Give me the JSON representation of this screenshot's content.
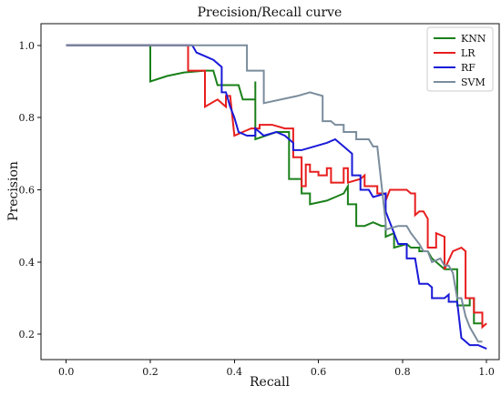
{
  "chart_data": {
    "type": "line",
    "title": "Precision/Recall curve",
    "xlabel": "Recall",
    "ylabel": "Precision",
    "xlim": [
      -0.06,
      1.03
    ],
    "ylim": [
      0.13,
      1.06
    ],
    "xticks": [
      0.0,
      0.2,
      0.4,
      0.6,
      0.8,
      1.0
    ],
    "yticks": [
      0.2,
      0.4,
      0.6,
      0.8,
      1.0
    ],
    "xtick_labels": [
      "0.0",
      "0.2",
      "0.4",
      "0.6",
      "0.8",
      "1.0"
    ],
    "ytick_labels": [
      "0.2",
      "0.4",
      "0.6",
      "0.8",
      "1.0"
    ],
    "grid": false,
    "legend_position": "top-right",
    "series": [
      {
        "name": "KNN",
        "color": "#1a801a",
        "points": [
          [
            0.0,
            1.0
          ],
          [
            0.2,
            1.0
          ],
          [
            0.2,
            0.9
          ],
          [
            0.24,
            0.915
          ],
          [
            0.28,
            0.925
          ],
          [
            0.33,
            0.93
          ],
          [
            0.35,
            0.93
          ],
          [
            0.36,
            0.89
          ],
          [
            0.41,
            0.89
          ],
          [
            0.42,
            0.85
          ],
          [
            0.45,
            0.85
          ],
          [
            0.45,
            0.9
          ],
          [
            0.45,
            0.74
          ],
          [
            0.5,
            0.76
          ],
          [
            0.53,
            0.76
          ],
          [
            0.53,
            0.63
          ],
          [
            0.56,
            0.63
          ],
          [
            0.56,
            0.59
          ],
          [
            0.58,
            0.59
          ],
          [
            0.58,
            0.56
          ],
          [
            0.62,
            0.57
          ],
          [
            0.64,
            0.58
          ],
          [
            0.66,
            0.59
          ],
          [
            0.67,
            0.61
          ],
          [
            0.67,
            0.56
          ],
          [
            0.69,
            0.56
          ],
          [
            0.69,
            0.5
          ],
          [
            0.71,
            0.5
          ],
          [
            0.73,
            0.51
          ],
          [
            0.75,
            0.5
          ],
          [
            0.76,
            0.5
          ],
          [
            0.76,
            0.47
          ],
          [
            0.78,
            0.48
          ],
          [
            0.78,
            0.44
          ],
          [
            0.81,
            0.45
          ],
          [
            0.82,
            0.44
          ],
          [
            0.84,
            0.44
          ],
          [
            0.84,
            0.43
          ],
          [
            0.86,
            0.43
          ],
          [
            0.87,
            0.41
          ],
          [
            0.89,
            0.39
          ],
          [
            0.9,
            0.38
          ],
          [
            0.93,
            0.38
          ],
          [
            0.93,
            0.28
          ],
          [
            0.96,
            0.28
          ],
          [
            0.96,
            0.3
          ],
          [
            0.97,
            0.3
          ],
          [
            0.97,
            0.23
          ],
          [
            0.99,
            0.23
          ]
        ]
      },
      {
        "name": "LR",
        "color": "#e81e1e",
        "points": [
          [
            0.0,
            1.0
          ],
          [
            0.29,
            1.0
          ],
          [
            0.29,
            0.93
          ],
          [
            0.33,
            0.93
          ],
          [
            0.33,
            0.83
          ],
          [
            0.36,
            0.85
          ],
          [
            0.38,
            0.83
          ],
          [
            0.38,
            0.86
          ],
          [
            0.39,
            0.86
          ],
          [
            0.4,
            0.75
          ],
          [
            0.42,
            0.76
          ],
          [
            0.44,
            0.77
          ],
          [
            0.46,
            0.77
          ],
          [
            0.46,
            0.78
          ],
          [
            0.49,
            0.78
          ],
          [
            0.52,
            0.77
          ],
          [
            0.54,
            0.77
          ],
          [
            0.54,
            0.69
          ],
          [
            0.56,
            0.69
          ],
          [
            0.56,
            0.61
          ],
          [
            0.57,
            0.61
          ],
          [
            0.57,
            0.67
          ],
          [
            0.58,
            0.67
          ],
          [
            0.58,
            0.65
          ],
          [
            0.6,
            0.65
          ],
          [
            0.6,
            0.64
          ],
          [
            0.62,
            0.64
          ],
          [
            0.62,
            0.66
          ],
          [
            0.63,
            0.66
          ],
          [
            0.63,
            0.62
          ],
          [
            0.66,
            0.62
          ],
          [
            0.66,
            0.66
          ],
          [
            0.67,
            0.66
          ],
          [
            0.67,
            0.62
          ],
          [
            0.7,
            0.63
          ],
          [
            0.71,
            0.64
          ],
          [
            0.71,
            0.61
          ],
          [
            0.74,
            0.61
          ],
          [
            0.74,
            0.59
          ],
          [
            0.76,
            0.59
          ],
          [
            0.76,
            0.57
          ],
          [
            0.77,
            0.6
          ],
          [
            0.8,
            0.6
          ],
          [
            0.81,
            0.6
          ],
          [
            0.82,
            0.59
          ],
          [
            0.83,
            0.59
          ],
          [
            0.83,
            0.53
          ],
          [
            0.84,
            0.54
          ],
          [
            0.85,
            0.54
          ],
          [
            0.86,
            0.52
          ],
          [
            0.86,
            0.44
          ],
          [
            0.88,
            0.44
          ],
          [
            0.88,
            0.48
          ],
          [
            0.9,
            0.47
          ],
          [
            0.9,
            0.38
          ],
          [
            0.92,
            0.43
          ],
          [
            0.94,
            0.44
          ],
          [
            0.95,
            0.43
          ],
          [
            0.95,
            0.3
          ],
          [
            0.97,
            0.3
          ],
          [
            0.97,
            0.26
          ],
          [
            0.99,
            0.26
          ],
          [
            0.99,
            0.22
          ],
          [
            1.0,
            0.23
          ]
        ]
      },
      {
        "name": "RF",
        "color": "#1a1ad8",
        "points": [
          [
            0.0,
            1.0
          ],
          [
            0.3,
            1.0
          ],
          [
            0.31,
            0.98
          ],
          [
            0.33,
            0.97
          ],
          [
            0.35,
            0.96
          ],
          [
            0.37,
            0.94
          ],
          [
            0.37,
            0.87
          ],
          [
            0.38,
            0.87
          ],
          [
            0.39,
            0.83
          ],
          [
            0.4,
            0.8
          ],
          [
            0.41,
            0.76
          ],
          [
            0.43,
            0.75
          ],
          [
            0.45,
            0.75
          ],
          [
            0.45,
            0.77
          ],
          [
            0.47,
            0.75
          ],
          [
            0.5,
            0.76
          ],
          [
            0.52,
            0.75
          ],
          [
            0.54,
            0.73
          ],
          [
            0.54,
            0.71
          ],
          [
            0.56,
            0.71
          ],
          [
            0.59,
            0.72
          ],
          [
            0.62,
            0.73
          ],
          [
            0.64,
            0.74
          ],
          [
            0.66,
            0.72
          ],
          [
            0.68,
            0.7
          ],
          [
            0.68,
            0.64
          ],
          [
            0.7,
            0.64
          ],
          [
            0.7,
            0.6
          ],
          [
            0.72,
            0.6
          ],
          [
            0.73,
            0.58
          ],
          [
            0.76,
            0.59
          ],
          [
            0.76,
            0.54
          ],
          [
            0.79,
            0.45
          ],
          [
            0.81,
            0.45
          ],
          [
            0.81,
            0.41
          ],
          [
            0.83,
            0.41
          ],
          [
            0.84,
            0.34
          ],
          [
            0.86,
            0.34
          ],
          [
            0.87,
            0.33
          ],
          [
            0.87,
            0.3
          ],
          [
            0.9,
            0.3
          ],
          [
            0.91,
            0.31
          ],
          [
            0.91,
            0.29
          ],
          [
            0.93,
            0.29
          ],
          [
            0.94,
            0.19
          ],
          [
            0.96,
            0.17
          ],
          [
            0.98,
            0.17
          ],
          [
            1.0,
            0.16
          ]
        ]
      },
      {
        "name": "SVM",
        "color": "#7a8c9c",
        "points": [
          [
            0.0,
            1.0
          ],
          [
            0.43,
            1.0
          ],
          [
            0.43,
            0.93
          ],
          [
            0.47,
            0.93
          ],
          [
            0.47,
            0.84
          ],
          [
            0.55,
            0.86
          ],
          [
            0.58,
            0.87
          ],
          [
            0.61,
            0.86
          ],
          [
            0.61,
            0.79
          ],
          [
            0.63,
            0.79
          ],
          [
            0.64,
            0.78
          ],
          [
            0.66,
            0.78
          ],
          [
            0.66,
            0.76
          ],
          [
            0.69,
            0.76
          ],
          [
            0.69,
            0.74
          ],
          [
            0.72,
            0.74
          ],
          [
            0.73,
            0.72
          ],
          [
            0.74,
            0.72
          ],
          [
            0.76,
            0.51
          ],
          [
            0.76,
            0.49
          ],
          [
            0.79,
            0.5
          ],
          [
            0.81,
            0.5
          ],
          [
            0.82,
            0.48
          ],
          [
            0.84,
            0.45
          ],
          [
            0.85,
            0.43
          ],
          [
            0.86,
            0.43
          ],
          [
            0.87,
            0.4
          ],
          [
            0.89,
            0.41
          ],
          [
            0.9,
            0.39
          ],
          [
            0.91,
            0.39
          ],
          [
            0.92,
            0.37
          ],
          [
            0.93,
            0.3
          ],
          [
            0.94,
            0.3
          ],
          [
            0.95,
            0.25
          ],
          [
            0.96,
            0.22
          ],
          [
            0.98,
            0.18
          ],
          [
            0.99,
            0.18
          ]
        ]
      }
    ]
  }
}
